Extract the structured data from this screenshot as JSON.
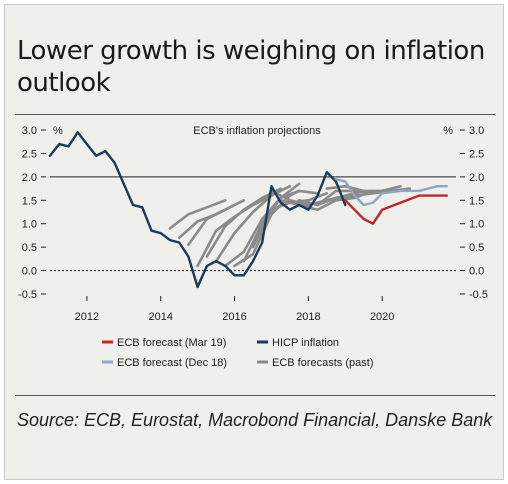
{
  "header": {
    "title": "Lower growth is weighing on inflation outlook"
  },
  "footer": {
    "source": "Source: ECB, Eurostat, Macrobond Financial, Danske Bank"
  },
  "colors": {
    "hicp": "#1b3a5c",
    "mar19": "#c0272d",
    "dec18": "#8fa7c4",
    "past": "#8a8a8a",
    "background": "#efefeb"
  },
  "chart_data": {
    "type": "line",
    "title": "ECB's inflation projections",
    "ylabel_left": "%",
    "ylabel_right": "%",
    "ylim": [
      -0.5,
      3.0
    ],
    "yticks": [
      "3.0",
      "2.5",
      "2.0",
      "1.5",
      "1.0",
      "0.5",
      "0.0",
      "-0.5"
    ],
    "yticks_values": [
      3.0,
      2.5,
      2.0,
      1.5,
      1.0,
      0.5,
      0.0,
      -0.5
    ],
    "xlim": [
      2011.0,
      2022.0
    ],
    "xticks": [
      "2012",
      "2014",
      "2016",
      "2018",
      "2020"
    ],
    "xticks_values": [
      2012,
      2014,
      2016,
      2018,
      2020
    ],
    "reference_lines": [
      2.0
    ],
    "zero_line_dashed": true,
    "legend": [
      {
        "key": "mar19",
        "label": "ECB forecast (Mar 19)"
      },
      {
        "key": "hicp",
        "label": "HICP inflation"
      },
      {
        "key": "dec18",
        "label": "ECB forecast (Dec 18)"
      },
      {
        "key": "past",
        "label": "ECB forecasts (past)"
      }
    ],
    "series": [
      {
        "name": "HICP inflation",
        "key": "hicp",
        "x": [
          2011.0,
          2011.25,
          2011.5,
          2011.75,
          2012.0,
          2012.25,
          2012.5,
          2012.75,
          2013.0,
          2013.25,
          2013.5,
          2013.75,
          2014.0,
          2014.25,
          2014.5,
          2014.75,
          2015.0,
          2015.25,
          2015.5,
          2015.75,
          2016.0,
          2016.25,
          2016.5,
          2016.75,
          2017.0,
          2017.25,
          2017.5,
          2017.75,
          2018.0,
          2018.25,
          2018.5,
          2018.75,
          2019.0
        ],
        "y": [
          2.45,
          2.7,
          2.65,
          2.95,
          2.7,
          2.45,
          2.55,
          2.3,
          1.85,
          1.4,
          1.35,
          0.85,
          0.8,
          0.65,
          0.6,
          0.3,
          -0.35,
          0.1,
          0.2,
          0.1,
          -0.1,
          -0.1,
          0.2,
          0.6,
          1.8,
          1.45,
          1.3,
          1.4,
          1.3,
          1.6,
          2.1,
          1.9,
          1.4
        ]
      },
      {
        "name": "ECB forecast (Mar 19)",
        "key": "mar19",
        "x": [
          2019.0,
          2019.25,
          2019.5,
          2019.75,
          2020.0,
          2020.5,
          2021.0,
          2021.5,
          2021.75
        ],
        "y": [
          1.5,
          1.3,
          1.1,
          1.0,
          1.3,
          1.45,
          1.6,
          1.6,
          1.6
        ]
      },
      {
        "name": "ECB forecast (Dec 18)",
        "key": "dec18",
        "x": [
          2018.75,
          2019.0,
          2019.25,
          2019.5,
          2019.75,
          2020.0,
          2020.5,
          2021.0,
          2021.5,
          2021.75
        ],
        "y": [
          1.95,
          1.9,
          1.6,
          1.4,
          1.45,
          1.65,
          1.7,
          1.7,
          1.8,
          1.8
        ]
      }
    ],
    "past_forecasts": [
      {
        "x": [
          2014.25,
          2014.75,
          2015.25,
          2015.75
        ],
        "y": [
          0.9,
          1.2,
          1.35,
          1.5
        ]
      },
      {
        "x": [
          2014.5,
          2015.0,
          2015.5,
          2016.0
        ],
        "y": [
          0.7,
          1.05,
          1.2,
          1.4
        ]
      },
      {
        "x": [
          2014.75,
          2015.25,
          2015.75,
          2016.25
        ],
        "y": [
          0.55,
          1.1,
          1.3,
          1.5
        ]
      },
      {
        "x": [
          2015.0,
          2015.5,
          2016.0,
          2016.5,
          2017.0
        ],
        "y": [
          0.1,
          0.85,
          1.15,
          1.4,
          1.6
        ]
      },
      {
        "x": [
          2015.25,
          2015.75,
          2016.25,
          2016.75,
          2017.25
        ],
        "y": [
          0.3,
          0.95,
          1.3,
          1.55,
          1.75
        ]
      },
      {
        "x": [
          2015.5,
          2016.0,
          2016.5,
          2017.0,
          2017.5
        ],
        "y": [
          0.2,
          0.8,
          1.25,
          1.6,
          1.8
        ]
      },
      {
        "x": [
          2015.75,
          2016.25,
          2016.75,
          2017.25,
          2017.75
        ],
        "y": [
          0.1,
          0.4,
          1.1,
          1.55,
          1.85
        ]
      },
      {
        "x": [
          2016.0,
          2016.5,
          2017.0,
          2017.5,
          2017.75
        ],
        "y": [
          0.1,
          0.35,
          1.2,
          1.6,
          1.7
        ]
      },
      {
        "x": [
          2016.25,
          2016.75,
          2017.25,
          2017.75,
          2018.25
        ],
        "y": [
          0.2,
          1.0,
          1.55,
          1.7,
          1.65
        ]
      },
      {
        "x": [
          2016.5,
          2017.0,
          2017.5,
          2018.0,
          2018.5
        ],
        "y": [
          0.5,
          1.3,
          1.45,
          1.5,
          1.65
        ]
      },
      {
        "x": [
          2017.0,
          2017.5,
          2018.0,
          2018.5,
          2019.0,
          2019.5
        ],
        "y": [
          1.7,
          1.5,
          1.4,
          1.5,
          1.6,
          1.7
        ]
      },
      {
        "x": [
          2017.25,
          2017.75,
          2018.25,
          2018.75,
          2019.25,
          2019.75
        ],
        "y": [
          1.5,
          1.4,
          1.3,
          1.5,
          1.55,
          1.7
        ]
      },
      {
        "x": [
          2017.75,
          2018.25,
          2018.75,
          2019.25,
          2019.75,
          2020.25
        ],
        "y": [
          1.5,
          1.4,
          1.55,
          1.6,
          1.65,
          1.75
        ]
      },
      {
        "x": [
          2018.25,
          2018.75,
          2019.25,
          2019.75,
          2020.25,
          2020.75
        ],
        "y": [
          1.4,
          1.7,
          1.7,
          1.65,
          1.7,
          1.75
        ]
      },
      {
        "x": [
          2018.5,
          2019.0,
          2019.5,
          2020.0,
          2020.5
        ],
        "y": [
          1.75,
          1.8,
          1.7,
          1.7,
          1.8
        ]
      }
    ]
  }
}
